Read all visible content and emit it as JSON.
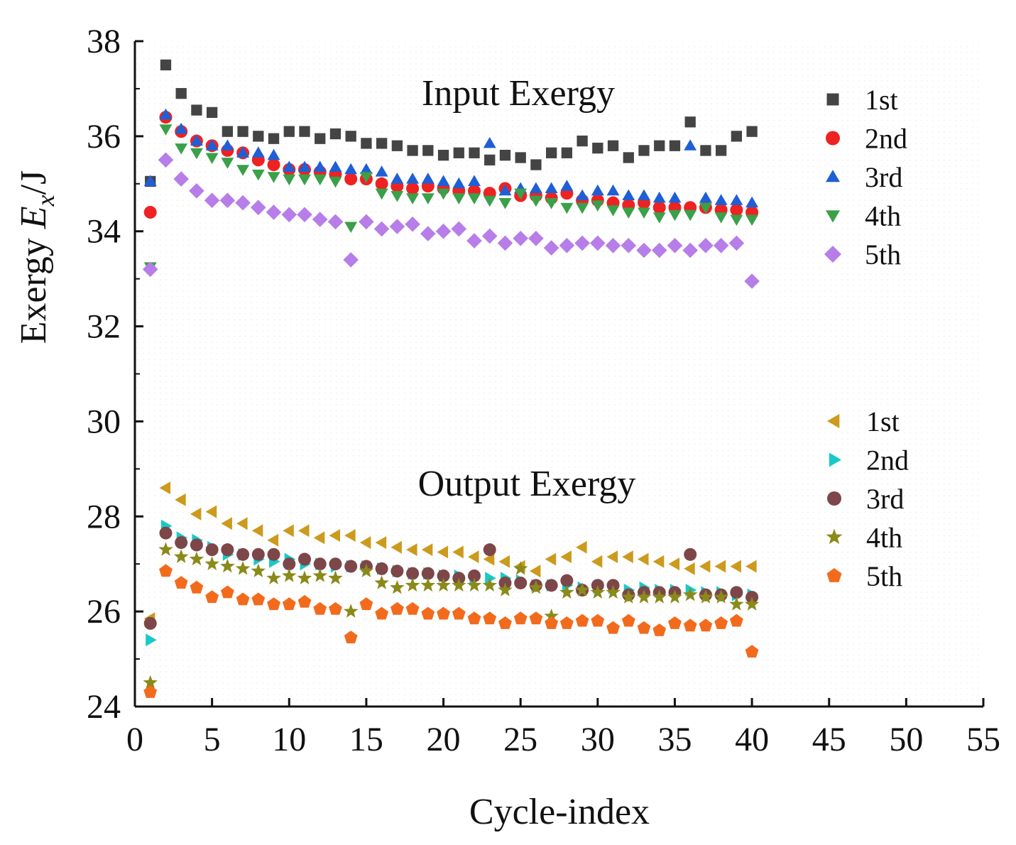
{
  "chart_data": {
    "type": "scatter",
    "xlabel": "Cycle-index",
    "ylabel_parts": [
      "Exergy ",
      "E",
      "x",
      "/J"
    ],
    "xlim": [
      0,
      55
    ],
    "ylim": [
      24,
      38
    ],
    "xticks": [
      0,
      5,
      10,
      15,
      20,
      25,
      30,
      35,
      40,
      45,
      50,
      55
    ],
    "yticks": [
      24,
      26,
      28,
      30,
      32,
      34,
      36,
      38
    ],
    "x": [
      1,
      2,
      3,
      4,
      5,
      6,
      7,
      8,
      9,
      10,
      11,
      12,
      13,
      14,
      15,
      16,
      17,
      18,
      19,
      20,
      21,
      22,
      23,
      24,
      25,
      26,
      27,
      28,
      29,
      30,
      31,
      32,
      33,
      34,
      35,
      36,
      37,
      38,
      39,
      40
    ],
    "annotations": [
      "Input Exergy",
      "Output Exergy"
    ],
    "groups": [
      {
        "name": "Input Exergy",
        "series": [
          {
            "name": "1st",
            "marker": "square",
            "color": "#444444",
            "values": [
              35.05,
              37.5,
              36.9,
              36.55,
              36.5,
              36.1,
              36.1,
              36.0,
              35.95,
              36.1,
              36.1,
              35.95,
              36.05,
              36.0,
              35.85,
              35.85,
              35.8,
              35.7,
              35.7,
              35.6,
              35.65,
              35.65,
              35.5,
              35.6,
              35.55,
              35.4,
              35.65,
              35.65,
              35.9,
              35.75,
              35.8,
              35.55,
              35.7,
              35.8,
              35.8,
              36.3,
              35.7,
              35.7,
              36.0,
              36.1
            ]
          },
          {
            "name": "2nd",
            "marker": "circle",
            "color": "#ee2222",
            "values": [
              34.4,
              36.4,
              36.1,
              35.9,
              35.8,
              35.7,
              35.65,
              35.5,
              35.4,
              35.3,
              35.3,
              35.25,
              35.2,
              35.1,
              35.1,
              35.0,
              34.95,
              34.9,
              34.95,
              34.9,
              34.85,
              34.85,
              34.8,
              34.9,
              34.75,
              34.75,
              34.7,
              34.8,
              34.65,
              34.65,
              34.6,
              34.55,
              34.6,
              34.5,
              34.5,
              34.5,
              34.5,
              34.45,
              34.45,
              34.4
            ]
          },
          {
            "name": "3rd",
            "marker": "triangle-up",
            "color": "#1f5fd6",
            "values": [
              35.05,
              36.45,
              36.15,
              35.9,
              35.8,
              35.8,
              35.65,
              35.65,
              35.6,
              35.35,
              35.35,
              35.35,
              35.35,
              35.3,
              35.3,
              35.25,
              35.1,
              35.1,
              35.1,
              35.05,
              35.0,
              35.05,
              35.85,
              34.85,
              34.9,
              34.9,
              34.9,
              34.95,
              34.75,
              34.85,
              34.85,
              34.75,
              34.75,
              34.7,
              34.7,
              35.8,
              34.7,
              34.65,
              34.65,
              34.6
            ]
          },
          {
            "name": "4th",
            "marker": "triangle-down",
            "color": "#3aa04a",
            "values": [
              33.25,
              36.15,
              35.75,
              35.65,
              35.55,
              35.45,
              35.3,
              35.2,
              35.15,
              35.1,
              35.1,
              35.1,
              35.05,
              34.1,
              35.15,
              34.8,
              34.75,
              34.7,
              34.7,
              34.8,
              34.7,
              34.7,
              34.65,
              34.6,
              34.8,
              34.65,
              34.6,
              34.5,
              34.5,
              34.55,
              34.45,
              34.4,
              34.4,
              34.3,
              34.35,
              34.35,
              34.5,
              34.3,
              34.25,
              34.25
            ]
          },
          {
            "name": "5th",
            "marker": "diamond",
            "color": "#b77de8",
            "values": [
              33.2,
              35.5,
              35.1,
              34.85,
              34.65,
              34.65,
              34.6,
              34.5,
              34.4,
              34.35,
              34.35,
              34.25,
              34.2,
              33.4,
              34.2,
              34.05,
              34.1,
              34.15,
              33.95,
              34.0,
              34.05,
              33.8,
              33.9,
              33.75,
              33.85,
              33.85,
              33.65,
              33.7,
              33.75,
              33.75,
              33.7,
              33.7,
              33.6,
              33.6,
              33.7,
              33.6,
              33.7,
              33.7,
              33.75,
              32.95
            ]
          }
        ]
      },
      {
        "name": "Output Exergy",
        "series": [
          {
            "name": "1st",
            "marker": "triangle-left",
            "color": "#cc9a1c",
            "values": [
              25.85,
              28.6,
              28.35,
              28.05,
              28.1,
              27.85,
              27.85,
              27.7,
              27.5,
              27.7,
              27.7,
              27.55,
              27.6,
              27.6,
              27.45,
              27.45,
              27.35,
              27.3,
              27.3,
              27.25,
              27.25,
              27.15,
              27.1,
              27.05,
              26.95,
              26.85,
              27.1,
              27.15,
              27.35,
              27.05,
              27.15,
              27.15,
              27.1,
              27.05,
              27.0,
              26.9,
              26.95,
              26.95,
              26.95,
              26.95
            ]
          },
          {
            "name": "2nd",
            "marker": "triangle-right",
            "color": "#19c9c7",
            "values": [
              25.4,
              27.8,
              27.55,
              27.5,
              27.35,
              27.2,
              27.2,
              27.1,
              27.05,
              27.1,
              27.0,
              27.0,
              26.95,
              26.95,
              26.95,
              26.9,
              26.85,
              26.8,
              26.8,
              26.75,
              26.75,
              26.7,
              26.7,
              26.7,
              26.65,
              26.55,
              26.55,
              26.55,
              26.5,
              26.5,
              26.5,
              26.45,
              26.5,
              26.45,
              26.45,
              26.45,
              26.4,
              26.4,
              26.35,
              26.35
            ]
          },
          {
            "name": "3rd",
            "marker": "circle",
            "color": "#7d4648",
            "values": [
              25.75,
              27.65,
              27.45,
              27.4,
              27.3,
              27.3,
              27.2,
              27.2,
              27.2,
              27.0,
              27.1,
              27.0,
              27.0,
              26.95,
              26.95,
              26.9,
              26.85,
              26.8,
              26.8,
              26.75,
              26.7,
              26.75,
              27.3,
              26.6,
              26.6,
              26.55,
              26.55,
              26.65,
              26.45,
              26.55,
              26.55,
              26.35,
              26.4,
              26.4,
              26.4,
              27.2,
              26.35,
              26.35,
              26.4,
              26.3
            ]
          },
          {
            "name": "4th",
            "marker": "star",
            "color": "#8a8a1a",
            "values": [
              24.5,
              27.3,
              27.15,
              27.1,
              27.0,
              26.95,
              26.9,
              26.85,
              26.7,
              26.75,
              26.7,
              26.75,
              26.7,
              26.0,
              26.85,
              26.6,
              26.5,
              26.55,
              26.55,
              26.55,
              26.55,
              26.55,
              26.55,
              26.45,
              26.9,
              26.5,
              25.9,
              26.4,
              26.45,
              26.4,
              26.4,
              26.3,
              26.3,
              26.3,
              26.3,
              26.35,
              26.3,
              26.3,
              26.15,
              26.15
            ]
          },
          {
            "name": "5th",
            "marker": "pentagon",
            "color": "#f26b1d",
            "values": [
              24.3,
              26.85,
              26.6,
              26.5,
              26.3,
              26.4,
              26.25,
              26.25,
              26.15,
              26.15,
              26.2,
              26.05,
              26.05,
              25.45,
              26.15,
              25.95,
              26.05,
              26.05,
              25.95,
              25.95,
              25.95,
              25.85,
              25.85,
              25.75,
              25.85,
              25.85,
              25.75,
              25.75,
              25.8,
              25.8,
              25.65,
              25.8,
              25.65,
              25.6,
              25.75,
              25.7,
              25.7,
              25.75,
              25.8,
              25.15
            ]
          }
        ]
      }
    ]
  }
}
